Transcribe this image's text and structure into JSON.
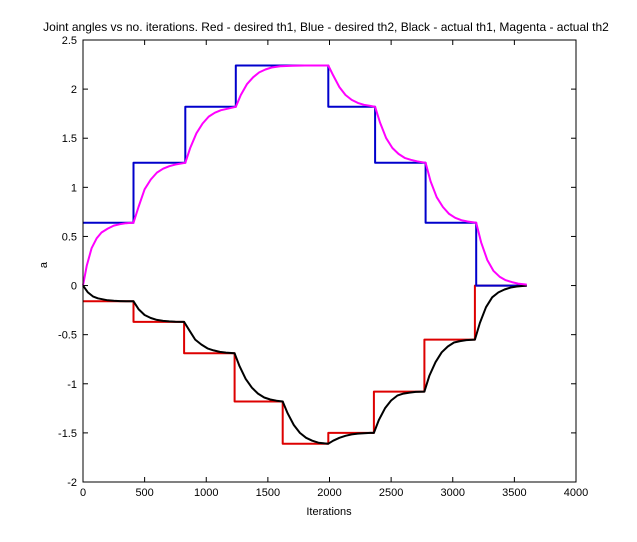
{
  "chart_data": {
    "type": "line",
    "title": "Joint angles vs no. iterations. Red - desired th1, Blue - desired th2, Black - actual th1, Magenta - actual th2",
    "xlabel": "Iterations",
    "ylabel": "a",
    "xlim": [
      0,
      4000
    ],
    "ylim": [
      -2,
      2.5
    ],
    "xticks": [
      0,
      500,
      1000,
      1500,
      2000,
      2500,
      3000,
      3500,
      4000
    ],
    "xtick_labels": [
      "0",
      "500",
      "1000",
      "1500",
      "2000",
      "2500",
      "3000",
      "3500",
      "4000"
    ],
    "yticks": [
      -2,
      -1.5,
      -1,
      -0.5,
      0,
      0.5,
      1,
      1.5,
      2,
      2.5
    ],
    "ytick_labels": [
      "-2",
      "-1.5",
      "-1",
      "-0.5",
      "0",
      "0.5",
      "1",
      "1.5",
      "2",
      "2.5"
    ],
    "grid": false,
    "legend": "none",
    "series": [
      {
        "color": "#dd0000",
        "style": "step",
        "x": [
          0,
          410,
          410,
          820,
          820,
          1230,
          1230,
          1620,
          1620,
          1990,
          1990,
          2360,
          2360,
          2770,
          2770,
          3180,
          3180,
          3600
        ],
        "y": [
          -0.16,
          -0.16,
          -0.37,
          -0.37,
          -0.69,
          -0.69,
          -1.18,
          -1.18,
          -1.61,
          -1.61,
          -1.5,
          -1.5,
          -1.08,
          -1.08,
          -0.55,
          -0.55,
          0.0,
          0.0
        ]
      },
      {
        "color": "#0000cc",
        "style": "step",
        "x": [
          0,
          410,
          410,
          830,
          830,
          1240,
          1240,
          1990,
          1990,
          2370,
          2370,
          2780,
          2780,
          3190,
          3190,
          3600
        ],
        "y": [
          0.64,
          0.64,
          1.25,
          1.25,
          1.82,
          1.82,
          2.24,
          2.24,
          1.82,
          1.82,
          1.25,
          1.25,
          0.64,
          0.64,
          0.0,
          0.0
        ]
      },
      {
        "color": "#000000",
        "style": "line",
        "x": [
          0,
          40,
          80,
          120,
          160,
          200,
          250,
          300,
          350,
          410,
          450,
          500,
          550,
          600,
          650,
          700,
          750,
          820,
          860,
          910,
          960,
          1010,
          1060,
          1110,
          1160,
          1230,
          1270,
          1320,
          1370,
          1420,
          1470,
          1520,
          1570,
          1620,
          1660,
          1710,
          1760,
          1810,
          1860,
          1910,
          1960,
          1990,
          2030,
          2080,
          2130,
          2180,
          2230,
          2280,
          2330,
          2360,
          2400,
          2450,
          2500,
          2550,
          2600,
          2650,
          2700,
          2770,
          2810,
          2860,
          2910,
          2960,
          3010,
          3060,
          3110,
          3180,
          3220,
          3270,
          3320,
          3370,
          3420,
          3470,
          3520,
          3600
        ],
        "y": [
          0.0,
          -0.07,
          -0.11,
          -0.13,
          -0.14,
          -0.15,
          -0.155,
          -0.158,
          -0.16,
          -0.16,
          -0.24,
          -0.3,
          -0.33,
          -0.35,
          -0.36,
          -0.365,
          -0.368,
          -0.37,
          -0.45,
          -0.55,
          -0.6,
          -0.64,
          -0.66,
          -0.675,
          -0.683,
          -0.69,
          -0.82,
          -0.95,
          -1.04,
          -1.1,
          -1.14,
          -1.16,
          -1.172,
          -1.18,
          -1.3,
          -1.42,
          -1.5,
          -1.55,
          -1.58,
          -1.6,
          -1.607,
          -1.61,
          -1.58,
          -1.55,
          -1.53,
          -1.515,
          -1.507,
          -1.503,
          -1.5,
          -1.5,
          -1.37,
          -1.25,
          -1.17,
          -1.12,
          -1.1,
          -1.09,
          -1.083,
          -1.08,
          -0.92,
          -0.78,
          -0.68,
          -0.62,
          -0.58,
          -0.565,
          -0.555,
          -0.55,
          -0.38,
          -0.22,
          -0.12,
          -0.07,
          -0.04,
          -0.02,
          -0.01,
          0.0
        ]
      },
      {
        "color": "#ff00ff",
        "style": "line",
        "x": [
          0,
          30,
          70,
          110,
          150,
          200,
          250,
          300,
          350,
          410,
          450,
          500,
          550,
          600,
          650,
          700,
          750,
          830,
          870,
          920,
          970,
          1020,
          1070,
          1120,
          1170,
          1240,
          1280,
          1330,
          1380,
          1430,
          1480,
          1530,
          1600,
          1700,
          1800,
          1900,
          1990,
          2030,
          2080,
          2130,
          2180,
          2230,
          2280,
          2330,
          2370,
          2410,
          2460,
          2510,
          2560,
          2610,
          2660,
          2710,
          2780,
          2820,
          2870,
          2920,
          2970,
          3020,
          3070,
          3120,
          3190,
          3230,
          3280,
          3330,
          3380,
          3430,
          3480,
          3530,
          3600
        ],
        "y": [
          0.0,
          0.2,
          0.38,
          0.48,
          0.54,
          0.58,
          0.61,
          0.625,
          0.635,
          0.64,
          0.8,
          0.98,
          1.08,
          1.15,
          1.19,
          1.215,
          1.232,
          1.25,
          1.4,
          1.55,
          1.65,
          1.72,
          1.76,
          1.785,
          1.8,
          1.82,
          1.94,
          2.05,
          2.12,
          2.17,
          2.2,
          2.22,
          2.232,
          2.238,
          2.24,
          2.24,
          2.24,
          2.14,
          2.02,
          1.94,
          1.89,
          1.86,
          1.84,
          1.83,
          1.82,
          1.66,
          1.5,
          1.4,
          1.34,
          1.3,
          1.28,
          1.265,
          1.25,
          1.06,
          0.9,
          0.8,
          0.73,
          0.69,
          0.665,
          0.652,
          0.64,
          0.44,
          0.26,
          0.15,
          0.09,
          0.055,
          0.035,
          0.02,
          0.01
        ]
      }
    ]
  }
}
